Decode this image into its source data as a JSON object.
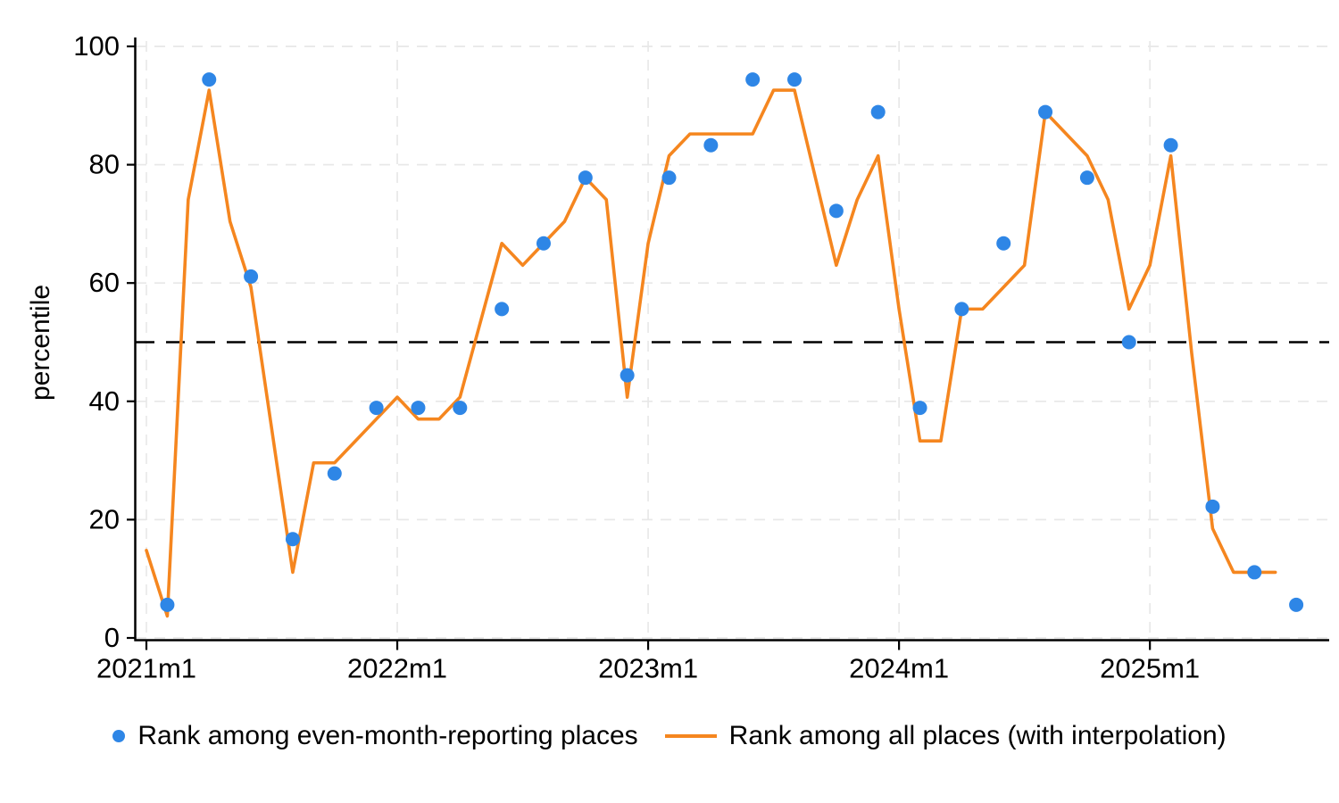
{
  "figure": {
    "background": "#ffffff",
    "text_color": "#000000",
    "gridline_color": "#e8e8e8",
    "axis_color": "#000000"
  },
  "chart_data": {
    "type": "line",
    "title": "",
    "xlabel": "",
    "ylabel": "percentile",
    "ylim": [
      0,
      100
    ],
    "yticks": [
      0,
      20,
      40,
      60,
      80,
      100
    ],
    "x_unit": "months since 2021m1",
    "xlim_months": [
      0,
      56.5
    ],
    "xticks": [
      {
        "m": 0,
        "label": "2021m1"
      },
      {
        "m": 12,
        "label": "2022m1"
      },
      {
        "m": 24,
        "label": "2023m1"
      },
      {
        "m": 36,
        "label": "2024m1"
      },
      {
        "m": 48,
        "label": "2025m1"
      }
    ],
    "grid": true,
    "reference_line": {
      "y": 50,
      "color": "#000000",
      "style": "dashed"
    },
    "legend_position": "bottom-center",
    "series": [
      {
        "name": "Rank among even-month-reporting places",
        "type": "scatter",
        "marker": "circle",
        "color": "#2e86e6",
        "points": [
          [
            1,
            5.6
          ],
          [
            3,
            94.4
          ],
          [
            5,
            61.1
          ],
          [
            7,
            16.7
          ],
          [
            9,
            27.8
          ],
          [
            11,
            38.9
          ],
          [
            13,
            38.9
          ],
          [
            15,
            38.9
          ],
          [
            17,
            55.6
          ],
          [
            19,
            66.7
          ],
          [
            21,
            77.8
          ],
          [
            23,
            44.4
          ],
          [
            25,
            77.8
          ],
          [
            27,
            83.3
          ],
          [
            29,
            94.4
          ],
          [
            31,
            94.4
          ],
          [
            33,
            72.2
          ],
          [
            35,
            88.9
          ],
          [
            37,
            38.9
          ],
          [
            39,
            55.6
          ],
          [
            41,
            66.7
          ],
          [
            43,
            88.9
          ],
          [
            45,
            77.8
          ],
          [
            47,
            50.0
          ],
          [
            49,
            83.3
          ],
          [
            51,
            22.2
          ],
          [
            53,
            11.1
          ],
          [
            55,
            5.6
          ]
        ]
      },
      {
        "name": "Rank among all places (with interpolation)",
        "type": "line",
        "color": "#f5861f",
        "points": [
          [
            0,
            14.8
          ],
          [
            1,
            3.7
          ],
          [
            2,
            74.1
          ],
          [
            3,
            92.6
          ],
          [
            4,
            70.4
          ],
          [
            5,
            59.3
          ],
          [
            6,
            35.2
          ],
          [
            7,
            11.1
          ],
          [
            8,
            29.6
          ],
          [
            9,
            29.6
          ],
          [
            10,
            33.3
          ],
          [
            11,
            37.0
          ],
          [
            12,
            40.7
          ],
          [
            13,
            37.0
          ],
          [
            14,
            37.0
          ],
          [
            15,
            40.7
          ],
          [
            16,
            53.7
          ],
          [
            17,
            66.7
          ],
          [
            18,
            63.0
          ],
          [
            19,
            66.7
          ],
          [
            20,
            70.4
          ],
          [
            21,
            77.8
          ],
          [
            22,
            74.1
          ],
          [
            23,
            40.7
          ],
          [
            24,
            66.7
          ],
          [
            25,
            81.5
          ],
          [
            26,
            85.2
          ],
          [
            27,
            85.2
          ],
          [
            28,
            85.2
          ],
          [
            29,
            85.2
          ],
          [
            30,
            92.6
          ],
          [
            31,
            92.6
          ],
          [
            32,
            77.8
          ],
          [
            33,
            63.0
          ],
          [
            34,
            74.1
          ],
          [
            35,
            81.5
          ],
          [
            36,
            55.6
          ],
          [
            37,
            33.3
          ],
          [
            38,
            33.3
          ],
          [
            39,
            55.6
          ],
          [
            40,
            55.6
          ],
          [
            41,
            59.3
          ],
          [
            42,
            63.0
          ],
          [
            43,
            88.9
          ],
          [
            44,
            85.2
          ],
          [
            45,
            81.5
          ],
          [
            46,
            74.1
          ],
          [
            47,
            55.6
          ],
          [
            48,
            63.0
          ],
          [
            49,
            81.5
          ],
          [
            50,
            48.1
          ],
          [
            51,
            18.5
          ],
          [
            52,
            11.1
          ],
          [
            53,
            11.1
          ],
          [
            54,
            11.1
          ]
        ]
      }
    ]
  },
  "legend": {
    "entries": [
      {
        "label": "Rank among even-month-reporting places",
        "marker": "dot"
      },
      {
        "label": "Rank among all places (with interpolation)",
        "marker": "line"
      }
    ]
  }
}
